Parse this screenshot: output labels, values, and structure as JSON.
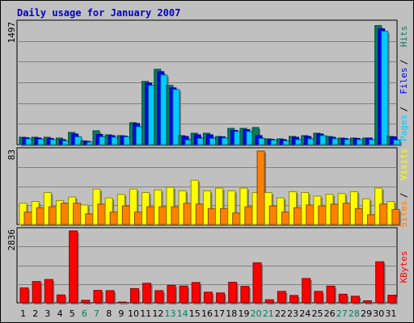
{
  "title": "Daily usage for January 2007",
  "colors": {
    "hits": "#00805c",
    "files": "#0000ff",
    "pages": "#00ccff",
    "visits": "#ffff00",
    "sites": "#ff8000",
    "kbytes": "#ff0000",
    "weekday_label": "#000000",
    "weekend_label": "#00805c"
  },
  "chart_data": [
    {
      "type": "bar",
      "panel": "hits-files-pages",
      "ymax_label": "1497",
      "ylim": [
        0,
        1497
      ],
      "legend": [
        "Pages",
        "Files",
        "Hits"
      ],
      "x": [
        1,
        2,
        3,
        4,
        5,
        6,
        7,
        8,
        9,
        10,
        11,
        12,
        13,
        14,
        15,
        16,
        17,
        18,
        19,
        20,
        21,
        22,
        23,
        24,
        25,
        26,
        27,
        28,
        29,
        30,
        31
      ],
      "series": [
        {
          "name": "Hits",
          "values": [
            90,
            90,
            90,
            80,
            150,
            45,
            170,
            120,
            110,
            270,
            780,
            930,
            730,
            110,
            140,
            140,
            100,
            200,
            200,
            210,
            70,
            70,
            100,
            110,
            140,
            100,
            80,
            80,
            80,
            1470,
            100
          ]
        },
        {
          "name": "Files",
          "values": [
            85,
            80,
            75,
            60,
            130,
            40,
            125,
            110,
            105,
            260,
            760,
            900,
            700,
            100,
            120,
            120,
            95,
            175,
            185,
            110,
            65,
            60,
            90,
            100,
            130,
            90,
            75,
            75,
            80,
            1430,
            95
          ]
        },
        {
          "name": "Pages",
          "values": [
            70,
            65,
            60,
            45,
            95,
            30,
            95,
            90,
            95,
            220,
            730,
            860,
            680,
            55,
            75,
            75,
            80,
            160,
            160,
            75,
            55,
            45,
            60,
            70,
            110,
            70,
            60,
            60,
            60,
            1400,
            55
          ]
        }
      ]
    },
    {
      "type": "bar",
      "panel": "visits-sites",
      "ymax_label": "83",
      "ylim": [
        0,
        83
      ],
      "legend": [
        "Sites",
        "Visits"
      ],
      "x": [
        1,
        2,
        3,
        4,
        5,
        6,
        7,
        8,
        9,
        10,
        11,
        12,
        13,
        14,
        15,
        16,
        17,
        18,
        19,
        20,
        21,
        22,
        23,
        24,
        25,
        26,
        27,
        28,
        29,
        30,
        31
      ],
      "series": [
        {
          "name": "Visits",
          "values": [
            24,
            26,
            36,
            27,
            31,
            22,
            40,
            30,
            34,
            40,
            36,
            39,
            42,
            38,
            50,
            38,
            41,
            38,
            41,
            36,
            36,
            30,
            37,
            36,
            32,
            34,
            35,
            37,
            29,
            41,
            26
          ]
        },
        {
          "name": "Sites",
          "values": [
            14,
            19,
            20,
            24,
            24,
            12,
            23,
            14,
            21,
            14,
            20,
            20,
            20,
            24,
            23,
            18,
            18,
            13,
            20,
            83,
            21,
            14,
            19,
            22,
            21,
            23,
            24,
            18,
            11,
            23,
            17
          ]
        }
      ]
    },
    {
      "type": "bar",
      "panel": "kbytes",
      "ymax_label": "2836",
      "ylim": [
        0,
        2836
      ],
      "legend": [
        "KBytes"
      ],
      "x": [
        1,
        2,
        3,
        4,
        5,
        6,
        7,
        8,
        9,
        10,
        11,
        12,
        13,
        14,
        15,
        16,
        17,
        18,
        19,
        20,
        21,
        22,
        23,
        24,
        25,
        26,
        27,
        28,
        29,
        30,
        31
      ],
      "series": [
        {
          "name": "KBytes",
          "values": [
            590,
            840,
            920,
            310,
            2836,
            100,
            490,
            480,
            30,
            560,
            770,
            480,
            690,
            660,
            800,
            420,
            390,
            810,
            650,
            1580,
            120,
            450,
            290,
            960,
            450,
            660,
            340,
            260,
            80,
            1620,
            300
          ]
        }
      ]
    }
  ],
  "days": [
    {
      "label": "1",
      "weekend": false
    },
    {
      "label": "2",
      "weekend": false
    },
    {
      "label": "3",
      "weekend": false
    },
    {
      "label": "4",
      "weekend": false
    },
    {
      "label": "5",
      "weekend": false
    },
    {
      "label": "6",
      "weekend": true
    },
    {
      "label": "7",
      "weekend": true
    },
    {
      "label": "8",
      "weekend": false
    },
    {
      "label": "9",
      "weekend": false
    },
    {
      "label": "10",
      "weekend": false
    },
    {
      "label": "11",
      "weekend": false
    },
    {
      "label": "12",
      "weekend": false
    },
    {
      "label": "13",
      "weekend": true
    },
    {
      "label": "14",
      "weekend": true
    },
    {
      "label": "15",
      "weekend": false
    },
    {
      "label": "16",
      "weekend": false
    },
    {
      "label": "17",
      "weekend": false
    },
    {
      "label": "18",
      "weekend": false
    },
    {
      "label": "19",
      "weekend": false
    },
    {
      "label": "20",
      "weekend": true
    },
    {
      "label": "21",
      "weekend": true
    },
    {
      "label": "22",
      "weekend": false
    },
    {
      "label": "23",
      "weekend": false
    },
    {
      "label": "24",
      "weekend": false
    },
    {
      "label": "25",
      "weekend": false
    },
    {
      "label": "26",
      "weekend": false
    },
    {
      "label": "27",
      "weekend": true
    },
    {
      "label": "28",
      "weekend": true
    },
    {
      "label": "29",
      "weekend": false
    },
    {
      "label": "30",
      "weekend": false
    },
    {
      "label": "31",
      "weekend": false
    }
  ]
}
